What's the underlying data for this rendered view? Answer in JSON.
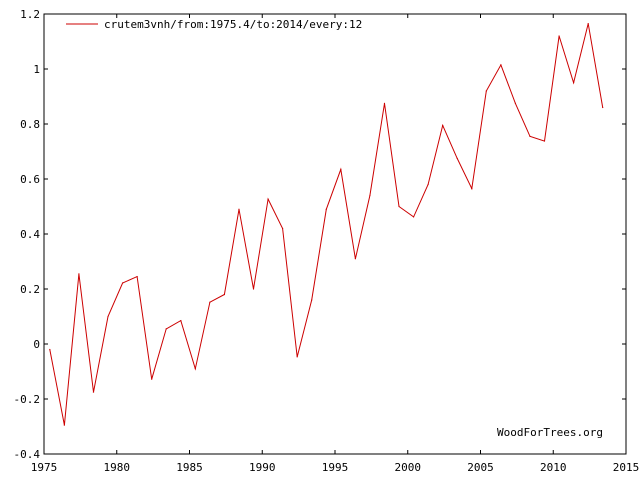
{
  "chart_data": {
    "type": "line",
    "legend": {
      "placement": "top-left",
      "entries": [
        "crutem3vnh/from:1975.4/to:2014/every:12"
      ]
    },
    "series": [
      {
        "name": "crutem3vnh/from:1975.4/to:2014/every:12",
        "color": "#cc0000",
        "x": [
          1975.4,
          1976.4,
          1977.4,
          1978.4,
          1979.4,
          1980.4,
          1981.4,
          1982.4,
          1983.4,
          1984.4,
          1985.4,
          1986.4,
          1987.4,
          1988.4,
          1989.4,
          1990.4,
          1991.4,
          1992.4,
          1993.4,
          1994.4,
          1995.4,
          1996.4,
          1997.4,
          1998.4,
          1999.4,
          2000.4,
          2001.4,
          2002.4,
          2003.4,
          2004.4,
          2005.4,
          2006.4,
          2007.4,
          2008.4,
          2009.4,
          2010.4,
          2011.4,
          2012.4,
          2013.4
        ],
        "y": [
          -0.02,
          -0.295,
          0.255,
          -0.175,
          0.1,
          0.222,
          0.245,
          -0.128,
          0.055,
          0.085,
          -0.09,
          0.152,
          0.18,
          0.49,
          0.2,
          0.527,
          0.42,
          -0.047,
          0.16,
          0.49,
          0.635,
          0.31,
          0.54,
          0.875,
          0.5,
          0.462,
          0.58,
          0.795,
          0.675,
          0.565,
          0.92,
          1.015,
          0.875,
          0.755,
          0.738,
          1.12,
          0.95,
          1.165,
          0.86
        ]
      }
    ],
    "xlim": [
      1975,
      2015
    ],
    "ylim": [
      -0.4,
      1.2
    ],
    "x_ticks": [
      "1975",
      "1980",
      "1985",
      "1990",
      "1995",
      "2000",
      "2005",
      "2010",
      "2015"
    ],
    "y_ticks": [
      "-0.4",
      "-0.2",
      "0",
      "0.2",
      "0.4",
      "0.6",
      "0.8",
      "1",
      "1.2"
    ],
    "grid": false,
    "credit": "WoodForTrees.org"
  }
}
